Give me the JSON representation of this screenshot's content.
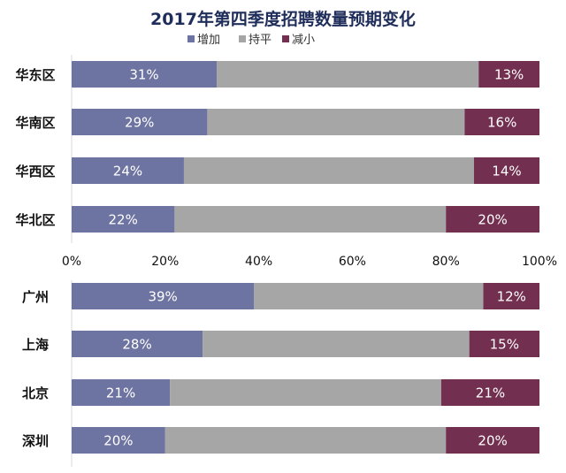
{
  "chart_data": {
    "type": "bar",
    "orientation": "horizontal",
    "stacked": "100%",
    "title": "2017年第四季度招聘数量预期变化",
    "legend": {
      "placement": "top",
      "entries": [
        "增加",
        "持平",
        "减小"
      ]
    },
    "colors": {
      "增加": "#6e74a1",
      "持平": "#a6a6a6",
      "减小": "#722f4f"
    },
    "x_ticks": [
      "0%",
      "20%",
      "40%",
      "60%",
      "80%",
      "100%"
    ],
    "xlim": [
      0,
      100
    ],
    "grid": false,
    "charts": [
      {
        "categories": [
          "华东区",
          "华南区",
          "华西区",
          "华北区"
        ],
        "series": [
          {
            "name": "增加",
            "values": [
              31,
              29,
              24,
              22
            ]
          },
          {
            "name": "持平",
            "values": [
              56,
              55,
              62,
              58
            ]
          },
          {
            "name": "减小",
            "values": [
              13,
              16,
              14,
              20
            ]
          }
        ]
      },
      {
        "categories": [
          "广州",
          "上海",
          "北京",
          "深圳"
        ],
        "series": [
          {
            "name": "增加",
            "values": [
              39,
              28,
              21,
              20
            ]
          },
          {
            "name": "持平",
            "values": [
              49,
              57,
              58,
              60
            ]
          },
          {
            "name": "减小",
            "values": [
              12,
              15,
              21,
              20
            ]
          }
        ]
      }
    ]
  }
}
